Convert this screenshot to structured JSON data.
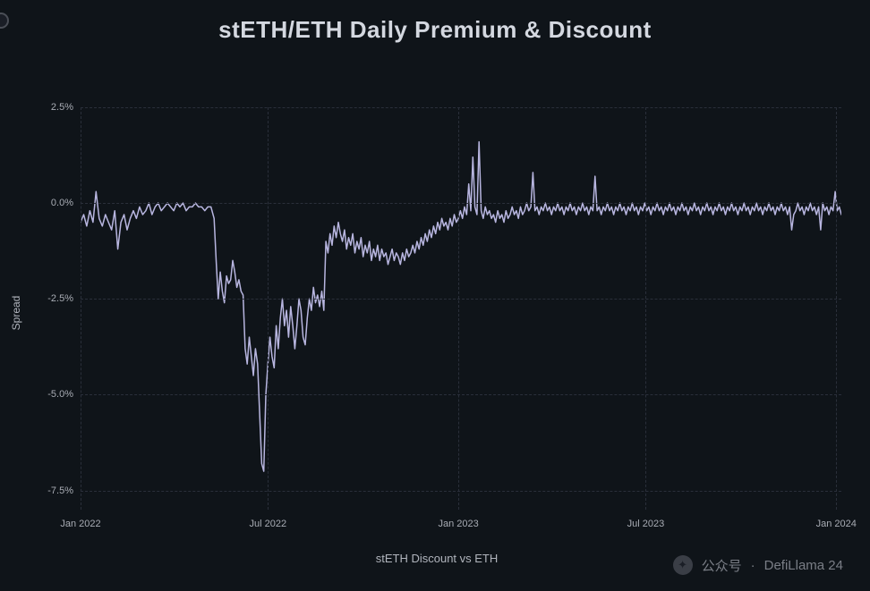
{
  "title": "stETH/ETH Daily Premium & Discount",
  "y_axis_label": "Spread",
  "x_axis_label": "stETH Discount vs ETH",
  "chart": {
    "type": "line",
    "background_color": "#0f1419",
    "grid_color": "#2a2f3a",
    "grid_style": "dashed",
    "line_color": "#b8b6e0",
    "line_width": 1.5,
    "ylim": [
      -8.0,
      2.5
    ],
    "y_ticks": [
      2.5,
      0.0,
      -2.5,
      -5.0,
      -7.5
    ],
    "y_tick_labels": [
      "2.5%",
      "0.0%",
      "-2.5%",
      "-5.0%",
      "-7.5%"
    ],
    "x_ticks": [
      0,
      181,
      365,
      546,
      730
    ],
    "x_tick_labels": [
      "Jan 2022",
      "Jul 2022",
      "Jan 2023",
      "Jul 2023",
      "Jan 2024"
    ],
    "x_range": [
      0,
      735
    ],
    "data": [
      [
        0,
        -0.5
      ],
      [
        3,
        -0.3
      ],
      [
        6,
        -0.6
      ],
      [
        9,
        -0.2
      ],
      [
        12,
        -0.5
      ],
      [
        15,
        0.3
      ],
      [
        18,
        -0.4
      ],
      [
        21,
        -0.6
      ],
      [
        24,
        -0.3
      ],
      [
        27,
        -0.5
      ],
      [
        30,
        -0.7
      ],
      [
        33,
        -0.2
      ],
      [
        36,
        -1.2
      ],
      [
        39,
        -0.5
      ],
      [
        42,
        -0.3
      ],
      [
        45,
        -0.7
      ],
      [
        48,
        -0.4
      ],
      [
        51,
        -0.2
      ],
      [
        54,
        -0.4
      ],
      [
        57,
        -0.1
      ],
      [
        60,
        -0.3
      ],
      [
        63,
        -0.2
      ],
      [
        66,
        0.0
      ],
      [
        69,
        -0.3
      ],
      [
        72,
        -0.1
      ],
      [
        75,
        0.0
      ],
      [
        78,
        -0.2
      ],
      [
        81,
        -0.1
      ],
      [
        84,
        0.0
      ],
      [
        87,
        -0.1
      ],
      [
        90,
        -0.2
      ],
      [
        93,
        0.0
      ],
      [
        96,
        -0.1
      ],
      [
        99,
        0.0
      ],
      [
        102,
        -0.2
      ],
      [
        105,
        -0.1
      ],
      [
        108,
        -0.1
      ],
      [
        111,
        0.0
      ],
      [
        114,
        -0.1
      ],
      [
        117,
        -0.1
      ],
      [
        120,
        -0.2
      ],
      [
        123,
        -0.1
      ],
      [
        126,
        -0.1
      ],
      [
        129,
        -0.4
      ],
      [
        131,
        -1.5
      ],
      [
        133,
        -2.5
      ],
      [
        135,
        -1.8
      ],
      [
        137,
        -2.3
      ],
      [
        139,
        -2.6
      ],
      [
        141,
        -1.9
      ],
      [
        143,
        -2.1
      ],
      [
        145,
        -2.0
      ],
      [
        147,
        -1.5
      ],
      [
        149,
        -1.8
      ],
      [
        151,
        -2.2
      ],
      [
        153,
        -2.0
      ],
      [
        155,
        -2.3
      ],
      [
        157,
        -2.4
      ],
      [
        159,
        -3.8
      ],
      [
        161,
        -4.2
      ],
      [
        163,
        -3.5
      ],
      [
        165,
        -4.0
      ],
      [
        167,
        -4.5
      ],
      [
        169,
        -3.8
      ],
      [
        171,
        -4.2
      ],
      [
        173,
        -5.5
      ],
      [
        175,
        -6.8
      ],
      [
        177,
        -7.0
      ],
      [
        179,
        -5.0
      ],
      [
        181,
        -4.2
      ],
      [
        183,
        -3.5
      ],
      [
        185,
        -4.0
      ],
      [
        187,
        -4.3
      ],
      [
        189,
        -3.2
      ],
      [
        191,
        -3.8
      ],
      [
        193,
        -3.0
      ],
      [
        195,
        -2.5
      ],
      [
        197,
        -3.2
      ],
      [
        199,
        -2.8
      ],
      [
        201,
        -3.5
      ],
      [
        203,
        -2.7
      ],
      [
        205,
        -3.2
      ],
      [
        207,
        -3.8
      ],
      [
        209,
        -3.2
      ],
      [
        211,
        -2.5
      ],
      [
        213,
        -2.8
      ],
      [
        215,
        -3.5
      ],
      [
        217,
        -3.7
      ],
      [
        219,
        -3.0
      ],
      [
        221,
        -2.5
      ],
      [
        223,
        -2.8
      ],
      [
        225,
        -2.2
      ],
      [
        227,
        -2.6
      ],
      [
        229,
        -2.4
      ],
      [
        231,
        -2.7
      ],
      [
        233,
        -2.3
      ],
      [
        235,
        -2.8
      ],
      [
        237,
        -1.0
      ],
      [
        239,
        -1.3
      ],
      [
        241,
        -0.8
      ],
      [
        243,
        -1.1
      ],
      [
        245,
        -0.6
      ],
      [
        247,
        -0.9
      ],
      [
        249,
        -0.5
      ],
      [
        251,
        -0.8
      ],
      [
        253,
        -1.0
      ],
      [
        255,
        -0.7
      ],
      [
        257,
        -1.2
      ],
      [
        259,
        -0.9
      ],
      [
        261,
        -1.1
      ],
      [
        263,
        -0.8
      ],
      [
        265,
        -1.3
      ],
      [
        267,
        -1.0
      ],
      [
        269,
        -1.2
      ],
      [
        271,
        -0.9
      ],
      [
        273,
        -1.4
      ],
      [
        275,
        -1.1
      ],
      [
        277,
        -1.3
      ],
      [
        279,
        -1.0
      ],
      [
        281,
        -1.5
      ],
      [
        283,
        -1.2
      ],
      [
        285,
        -1.4
      ],
      [
        287,
        -1.1
      ],
      [
        289,
        -1.5
      ],
      [
        291,
        -1.2
      ],
      [
        293,
        -1.4
      ],
      [
        295,
        -1.3
      ],
      [
        297,
        -1.6
      ],
      [
        299,
        -1.4
      ],
      [
        301,
        -1.2
      ],
      [
        303,
        -1.5
      ],
      [
        305,
        -1.3
      ],
      [
        307,
        -1.4
      ],
      [
        309,
        -1.6
      ],
      [
        311,
        -1.3
      ],
      [
        313,
        -1.5
      ],
      [
        315,
        -1.2
      ],
      [
        317,
        -1.4
      ],
      [
        319,
        -1.3
      ],
      [
        321,
        -1.1
      ],
      [
        323,
        -1.3
      ],
      [
        325,
        -1.0
      ],
      [
        327,
        -1.2
      ],
      [
        329,
        -0.9
      ],
      [
        331,
        -1.1
      ],
      [
        333,
        -0.8
      ],
      [
        335,
        -1.0
      ],
      [
        337,
        -0.7
      ],
      [
        339,
        -0.9
      ],
      [
        341,
        -0.6
      ],
      [
        343,
        -0.8
      ],
      [
        345,
        -0.5
      ],
      [
        347,
        -0.7
      ],
      [
        349,
        -0.4
      ],
      [
        351,
        -0.6
      ],
      [
        353,
        -0.5
      ],
      [
        355,
        -0.7
      ],
      [
        357,
        -0.4
      ],
      [
        359,
        -0.6
      ],
      [
        361,
        -0.3
      ],
      [
        363,
        -0.5
      ],
      [
        365,
        -0.4
      ],
      [
        367,
        -0.2
      ],
      [
        369,
        -0.4
      ],
      [
        371,
        -0.1
      ],
      [
        373,
        -0.3
      ],
      [
        375,
        0.5
      ],
      [
        377,
        -0.2
      ],
      [
        379,
        1.2
      ],
      [
        381,
        -0.1
      ],
      [
        383,
        -0.3
      ],
      [
        385,
        1.6
      ],
      [
        387,
        -0.2
      ],
      [
        389,
        -0.4
      ],
      [
        391,
        -0.1
      ],
      [
        393,
        -0.3
      ],
      [
        395,
        -0.2
      ],
      [
        397,
        -0.4
      ],
      [
        399,
        -0.3
      ],
      [
        401,
        -0.5
      ],
      [
        403,
        -0.2
      ],
      [
        405,
        -0.4
      ],
      [
        407,
        -0.3
      ],
      [
        409,
        -0.5
      ],
      [
        411,
        -0.2
      ],
      [
        413,
        -0.4
      ],
      [
        415,
        -0.3
      ],
      [
        417,
        -0.1
      ],
      [
        419,
        -0.3
      ],
      [
        421,
        -0.2
      ],
      [
        423,
        -0.4
      ],
      [
        425,
        -0.1
      ],
      [
        427,
        -0.3
      ],
      [
        429,
        -0.2
      ],
      [
        431,
        0.0
      ],
      [
        433,
        -0.2
      ],
      [
        435,
        -0.1
      ],
      [
        437,
        0.8
      ],
      [
        439,
        -0.2
      ],
      [
        441,
        -0.1
      ],
      [
        443,
        -0.3
      ],
      [
        445,
        -0.1
      ],
      [
        447,
        -0.2
      ],
      [
        449,
        0.0
      ],
      [
        451,
        -0.2
      ],
      [
        453,
        -0.1
      ],
      [
        455,
        -0.3
      ],
      [
        457,
        -0.1
      ],
      [
        459,
        -0.2
      ],
      [
        461,
        0.0
      ],
      [
        463,
        -0.2
      ],
      [
        465,
        -0.1
      ],
      [
        467,
        -0.3
      ],
      [
        469,
        -0.1
      ],
      [
        471,
        -0.2
      ],
      [
        473,
        0.0
      ],
      [
        475,
        -0.2
      ],
      [
        477,
        -0.1
      ],
      [
        479,
        -0.3
      ],
      [
        481,
        -0.1
      ],
      [
        483,
        -0.2
      ],
      [
        485,
        0.0
      ],
      [
        487,
        -0.2
      ],
      [
        489,
        -0.1
      ],
      [
        491,
        -0.3
      ],
      [
        493,
        -0.1
      ],
      [
        495,
        -0.2
      ],
      [
        497,
        0.7
      ],
      [
        499,
        -0.2
      ],
      [
        501,
        -0.1
      ],
      [
        503,
        -0.3
      ],
      [
        505,
        -0.1
      ],
      [
        507,
        -0.2
      ],
      [
        509,
        0.0
      ],
      [
        511,
        -0.2
      ],
      [
        513,
        -0.1
      ],
      [
        515,
        -0.3
      ],
      [
        517,
        -0.1
      ],
      [
        519,
        -0.2
      ],
      [
        521,
        0.0
      ],
      [
        523,
        -0.2
      ],
      [
        525,
        -0.1
      ],
      [
        527,
        -0.3
      ],
      [
        529,
        -0.1
      ],
      [
        531,
        -0.2
      ],
      [
        533,
        0.0
      ],
      [
        535,
        -0.2
      ],
      [
        537,
        -0.1
      ],
      [
        539,
        -0.3
      ],
      [
        541,
        -0.1
      ],
      [
        543,
        -0.2
      ],
      [
        545,
        0.0
      ],
      [
        547,
        -0.2
      ],
      [
        549,
        -0.1
      ],
      [
        551,
        -0.3
      ],
      [
        553,
        -0.1
      ],
      [
        555,
        -0.2
      ],
      [
        557,
        0.0
      ],
      [
        559,
        -0.2
      ],
      [
        561,
        -0.1
      ],
      [
        563,
        -0.3
      ],
      [
        565,
        -0.1
      ],
      [
        567,
        -0.2
      ],
      [
        569,
        0.0
      ],
      [
        571,
        -0.2
      ],
      [
        573,
        -0.1
      ],
      [
        575,
        -0.3
      ],
      [
        577,
        -0.1
      ],
      [
        579,
        -0.2
      ],
      [
        581,
        0.0
      ],
      [
        583,
        -0.2
      ],
      [
        585,
        -0.1
      ],
      [
        587,
        -0.3
      ],
      [
        589,
        -0.1
      ],
      [
        591,
        -0.2
      ],
      [
        593,
        0.0
      ],
      [
        595,
        -0.2
      ],
      [
        597,
        -0.1
      ],
      [
        599,
        -0.3
      ],
      [
        601,
        -0.1
      ],
      [
        603,
        -0.2
      ],
      [
        605,
        0.0
      ],
      [
        607,
        -0.2
      ],
      [
        609,
        -0.1
      ],
      [
        611,
        -0.3
      ],
      [
        613,
        -0.1
      ],
      [
        615,
        -0.2
      ],
      [
        617,
        0.0
      ],
      [
        619,
        -0.2
      ],
      [
        621,
        -0.1
      ],
      [
        623,
        -0.3
      ],
      [
        625,
        -0.1
      ],
      [
        627,
        -0.2
      ],
      [
        629,
        0.0
      ],
      [
        631,
        -0.2
      ],
      [
        633,
        -0.1
      ],
      [
        635,
        -0.3
      ],
      [
        637,
        -0.1
      ],
      [
        639,
        -0.2
      ],
      [
        641,
        0.0
      ],
      [
        643,
        -0.2
      ],
      [
        645,
        -0.1
      ],
      [
        647,
        -0.3
      ],
      [
        649,
        -0.1
      ],
      [
        651,
        -0.2
      ],
      [
        653,
        0.0
      ],
      [
        655,
        -0.2
      ],
      [
        657,
        -0.1
      ],
      [
        659,
        -0.3
      ],
      [
        661,
        -0.1
      ],
      [
        663,
        -0.2
      ],
      [
        665,
        0.0
      ],
      [
        667,
        -0.2
      ],
      [
        669,
        -0.1
      ],
      [
        671,
        -0.3
      ],
      [
        673,
        -0.1
      ],
      [
        675,
        -0.2
      ],
      [
        677,
        0.0
      ],
      [
        679,
        -0.2
      ],
      [
        681,
        -0.1
      ],
      [
        683,
        -0.3
      ],
      [
        685,
        -0.1
      ],
      [
        687,
        -0.7
      ],
      [
        689,
        -0.3
      ],
      [
        691,
        -0.2
      ],
      [
        693,
        0.0
      ],
      [
        695,
        -0.2
      ],
      [
        697,
        -0.1
      ],
      [
        699,
        -0.3
      ],
      [
        701,
        -0.1
      ],
      [
        703,
        -0.2
      ],
      [
        705,
        0.0
      ],
      [
        707,
        -0.2
      ],
      [
        709,
        -0.1
      ],
      [
        711,
        -0.3
      ],
      [
        713,
        -0.1
      ],
      [
        715,
        -0.7
      ],
      [
        717,
        0.0
      ],
      [
        719,
        -0.2
      ],
      [
        721,
        -0.1
      ],
      [
        723,
        -0.3
      ],
      [
        725,
        -0.1
      ],
      [
        727,
        -0.2
      ],
      [
        729,
        0.3
      ],
      [
        731,
        -0.2
      ],
      [
        733,
        -0.1
      ],
      [
        735,
        -0.3
      ]
    ]
  },
  "watermark": {
    "label": "公众号",
    "separator": "·",
    "source": "DefiLlama 24"
  }
}
